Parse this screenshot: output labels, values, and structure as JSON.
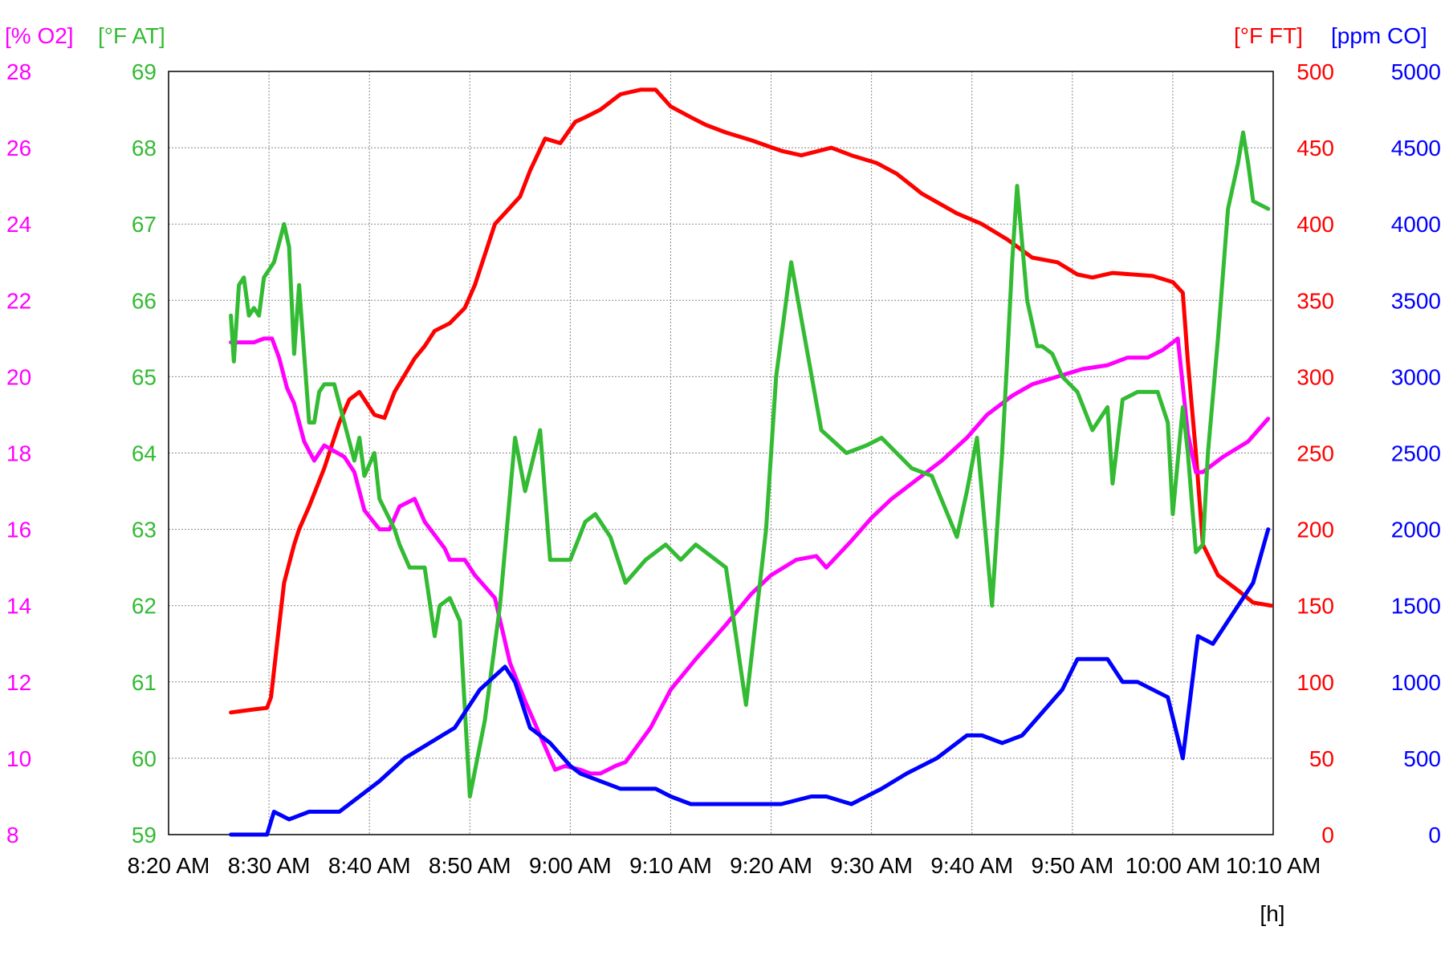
{
  "chart_data": {
    "type": "line",
    "x_tick_labels": [
      "8:20 AM",
      "8:30 AM",
      "8:40 AM",
      "8:50 AM",
      "9:00 AM",
      "9:10 AM",
      "9:20 AM",
      "9:30 AM",
      "9:40 AM",
      "9:50 AM",
      "10:00 AM",
      "10:10 AM"
    ],
    "x_range_minutes": [
      0,
      110
    ],
    "x_unit_label": "[h]",
    "grid": true,
    "axes": [
      {
        "id": "o2",
        "side": "left",
        "label": "[% O2]",
        "color": "#ff00ff",
        "range": [
          8,
          28
        ],
        "ticks": [
          "8",
          "10",
          "12",
          "14",
          "16",
          "18",
          "20",
          "22",
          "24",
          "26",
          "28"
        ]
      },
      {
        "id": "at",
        "side": "left",
        "label": "[°F AT]",
        "color": "#33bb33",
        "range": [
          59,
          69
        ],
        "ticks": [
          "59",
          "60",
          "61",
          "62",
          "63",
          "64",
          "65",
          "66",
          "67",
          "68",
          "69"
        ]
      },
      {
        "id": "ft",
        "side": "right",
        "label": "[°F FT]",
        "color": "#ff0000",
        "range": [
          0,
          500
        ],
        "ticks": [
          "0",
          "50",
          "100",
          "150",
          "200",
          "250",
          "300",
          "350",
          "400",
          "450",
          "500"
        ]
      },
      {
        "id": "co",
        "side": "right",
        "label": "[ppm CO]",
        "color": "#0000ff",
        "range": [
          0,
          5000
        ],
        "ticks": [
          "0",
          "500",
          "1000",
          "1500",
          "2000",
          "2500",
          "3000",
          "3500",
          "4000",
          "4500",
          "5000"
        ]
      }
    ],
    "series": [
      {
        "axis": "ft",
        "color": "#ff0000",
        "x": [
          6.2,
          8.5,
          9.8,
          10.2,
          10.8,
          11.5,
          12.5,
          13.0,
          14.0,
          15.5,
          17.0,
          18.0,
          19.0,
          20.5,
          21.5,
          22.5,
          24.5,
          25.5,
          26.5,
          28.0,
          29.5,
          30.5,
          32.5,
          35.0,
          36.0,
          37.5,
          39.0,
          40.5,
          41.5,
          43.0,
          45.0,
          47.0,
          48.5,
          50.0,
          52.0,
          53.5,
          55.5,
          58.0,
          61.0,
          63.0,
          66.0,
          68.0,
          70.5,
          72.5,
          75.0,
          78.5,
          81.0,
          83.5,
          86.0,
          88.5,
          90.5,
          92.0,
          94.0,
          96.0,
          98.0,
          100.0,
          101.0,
          101.5,
          102.3,
          103.0,
          104.5,
          106.5,
          108.0,
          109.8
        ],
        "y": [
          80,
          82,
          83,
          90,
          125,
          165,
          190,
          200,
          215,
          240,
          270,
          285,
          290,
          275,
          273,
          290,
          312,
          320,
          330,
          335,
          345,
          360,
          400,
          418,
          435,
          456,
          453,
          467,
          470,
          475,
          485,
          488,
          488,
          477,
          470,
          465,
          460,
          455,
          448,
          445,
          450,
          445,
          440,
          433,
          420,
          407,
          400,
          390,
          378,
          375,
          367,
          365,
          368,
          367,
          366,
          362,
          355,
          310,
          250,
          190,
          170,
          160,
          152,
          150
        ]
      },
      {
        "axis": "o2",
        "color": "#ff00ff",
        "x": [
          6.2,
          8.5,
          9.5,
          10.3,
          11.0,
          11.8,
          12.5,
          13.5,
          14.5,
          15.5,
          17.5,
          18.5,
          19.5,
          21.0,
          22.0,
          23.0,
          24.5,
          25.5,
          27.5,
          28.0,
          29.5,
          30.5,
          32.5,
          34.0,
          35.5,
          36.5,
          38.0,
          38.5,
          39.5,
          41.0,
          42.0,
          43.0,
          44.5,
          45.5,
          48.0,
          50.0,
          52.5,
          55.5,
          58.0,
          60.0,
          62.5,
          64.5,
          65.5,
          68.0,
          70.0,
          72.0,
          74.5,
          77.0,
          79.5,
          81.5,
          84.0,
          86.0,
          88.5,
          91.0,
          93.5,
          95.5,
          97.5,
          99.0,
          100.5,
          101.5,
          102.3,
          103.0,
          105.0,
          107.5,
          109.5
        ],
        "y": [
          20.9,
          20.9,
          21.0,
          21.0,
          20.5,
          19.7,
          19.3,
          18.3,
          17.8,
          18.2,
          17.9,
          17.5,
          16.5,
          16.0,
          16.0,
          16.6,
          16.8,
          16.2,
          15.5,
          15.2,
          15.2,
          14.8,
          14.2,
          12.5,
          11.5,
          10.9,
          10.0,
          9.7,
          9.8,
          9.7,
          9.6,
          9.6,
          9.8,
          9.9,
          10.8,
          11.8,
          12.6,
          13.5,
          14.3,
          14.8,
          15.2,
          15.3,
          15.0,
          15.7,
          16.3,
          16.8,
          17.3,
          17.8,
          18.4,
          19.0,
          19.5,
          19.8,
          20.0,
          20.2,
          20.3,
          20.5,
          20.5,
          20.7,
          21.0,
          18.5,
          17.5,
          17.5,
          17.9,
          18.3,
          18.9
        ]
      },
      {
        "axis": "at",
        "color": "#33bb33",
        "x": [
          6.2,
          6.5,
          7.0,
          7.5,
          8.0,
          8.5,
          9.0,
          9.5,
          10.0,
          10.5,
          11.5,
          12.0,
          12.5,
          13.0,
          14.0,
          14.5,
          15.0,
          15.5,
          16.5,
          17.5,
          18.5,
          19.0,
          19.5,
          20.5,
          21.0,
          22.5,
          23.0,
          24.0,
          25.5,
          26.5,
          27.0,
          28.0,
          29.0,
          30.0,
          31.5,
          33.0,
          34.5,
          35.5,
          37.0,
          38.0,
          40.0,
          41.5,
          42.5,
          44.0,
          45.5,
          47.5,
          49.5,
          51.0,
          52.5,
          53.5,
          55.5,
          57.5,
          59.5,
          60.5,
          62.0,
          65.0,
          67.5,
          69.5,
          71.0,
          74.0,
          76.0,
          78.5,
          79.5,
          80.5,
          82.0,
          83.0,
          83.5,
          84.0,
          84.5,
          85.5,
          86.5,
          87.0,
          88.0,
          89.0,
          90.5,
          92.0,
          93.5,
          94.0,
          95.0,
          96.5,
          98.5,
          99.5,
          100.0,
          101.0,
          101.5,
          102.3,
          103.0,
          103.5,
          104.5,
          105.5,
          106.5,
          107.0,
          107.5,
          108.0,
          109.5
        ],
        "y": [
          65.8,
          65.2,
          66.2,
          66.3,
          65.8,
          65.9,
          65.8,
          66.3,
          66.4,
          66.5,
          67.0,
          66.7,
          65.3,
          66.2,
          64.4,
          64.4,
          64.8,
          64.9,
          64.9,
          64.4,
          63.9,
          64.2,
          63.7,
          64.0,
          63.4,
          63.0,
          62.8,
          62.5,
          62.5,
          61.6,
          62.0,
          62.1,
          61.8,
          59.5,
          60.5,
          62.0,
          64.2,
          63.5,
          64.3,
          62.6,
          62.6,
          63.1,
          63.2,
          62.9,
          62.3,
          62.6,
          62.8,
          62.6,
          62.8,
          62.7,
          62.5,
          60.7,
          63.0,
          65.0,
          66.5,
          64.3,
          64.0,
          64.1,
          64.2,
          63.8,
          63.7,
          62.9,
          63.5,
          64.2,
          62.0,
          64.0,
          65.2,
          66.5,
          67.5,
          66.0,
          65.4,
          65.4,
          65.3,
          65.0,
          64.8,
          64.3,
          64.6,
          63.6,
          64.7,
          64.8,
          64.8,
          64.4,
          63.2,
          64.6,
          64.0,
          62.7,
          62.8,
          64.0,
          65.5,
          67.2,
          67.8,
          68.2,
          67.8,
          67.3,
          67.2
        ]
      },
      {
        "axis": "co",
        "color": "#0000ff",
        "x": [
          6.2,
          9.8,
          10.5,
          12.0,
          14.0,
          15.0,
          17.0,
          19.0,
          21.0,
          23.5,
          26.0,
          28.5,
          31.0,
          33.5,
          34.5,
          36.0,
          38.0,
          40.0,
          41.0,
          43.0,
          45.0,
          47.0,
          48.5,
          50.0,
          52.0,
          55.0,
          59.0,
          61.0,
          64.0,
          65.5,
          68.0,
          71.0,
          73.5,
          76.5,
          79.5,
          81.0,
          83.0,
          85.0,
          87.0,
          89.0,
          90.5,
          92.0,
          93.5,
          95.0,
          96.5,
          98.0,
          99.5,
          101.0,
          102.5,
          104.0,
          105.0,
          106.5,
          108.0,
          109.5
        ],
        "y": [
          0,
          0,
          150,
          100,
          150,
          150,
          150,
          250,
          350,
          500,
          600,
          700,
          950,
          1100,
          1000,
          700,
          600,
          450,
          400,
          350,
          300,
          300,
          300,
          250,
          200,
          200,
          200,
          200,
          250,
          250,
          200,
          300,
          400,
          500,
          650,
          650,
          600,
          650,
          800,
          950,
          1150,
          1150,
          1150,
          1000,
          1000,
          950,
          900,
          500,
          1300,
          1250,
          1350,
          1500,
          1650,
          2000
        ]
      }
    ]
  }
}
